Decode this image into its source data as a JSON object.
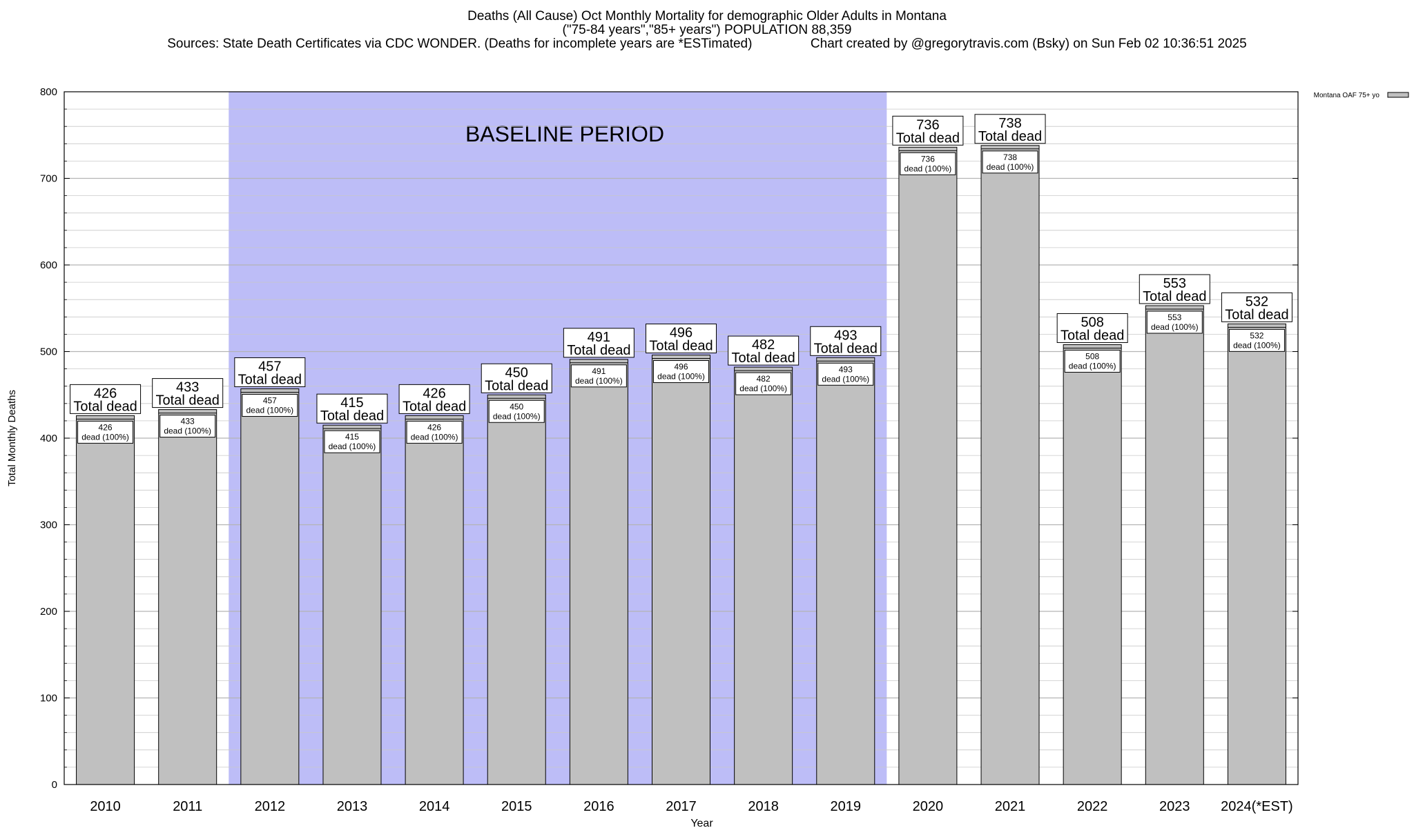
{
  "title_lines": [
    "Deaths (All Cause) Oct Monthly Mortality for demographic Older Adults in Montana",
    "(\"75-84 years\",\"85+ years\") POPULATION 88,359",
    "Sources: State Death Certificates via CDC WONDER. (Deaths for incomplete years are *ESTimated)                Chart created by @gregorytravis.com (Bsky) on Sun Feb 02 10:36:51 2025"
  ],
  "colors": {
    "bar": "#c0c0c0",
    "baseline": "#bdbdf7",
    "grid": "#c8c8c8"
  },
  "chart_data": {
    "type": "bar",
    "title": "Deaths (All Cause) Oct Monthly Mortality for demographic Older Adults in Montana",
    "xlabel": "Year",
    "ylabel": "Total Monthly Deaths",
    "ylim": [
      0,
      800
    ],
    "yticks": [
      0,
      100,
      200,
      300,
      400,
      500,
      600,
      700,
      800
    ],
    "grid": true,
    "legend": {
      "position": "top-right",
      "entries": [
        "Montana OAF 75+ yo"
      ]
    },
    "categories": [
      "2010",
      "2011",
      "2012",
      "2013",
      "2014",
      "2015",
      "2016",
      "2017",
      "2018",
      "2019",
      "2020",
      "2021",
      "2022",
      "2023",
      "2024(*EST)"
    ],
    "series": [
      {
        "name": "Montana OAF 75+ yo",
        "values": [
          426,
          433,
          457,
          415,
          426,
          450,
          491,
          496,
          482,
          493,
          736,
          738,
          508,
          553,
          532
        ]
      }
    ],
    "total_label_suffix": "Total dead",
    "segment_label_suffix": "dead (100%)",
    "baseline": {
      "label": "BASELINE PERIOD",
      "start": "2012",
      "end": "2019"
    }
  }
}
